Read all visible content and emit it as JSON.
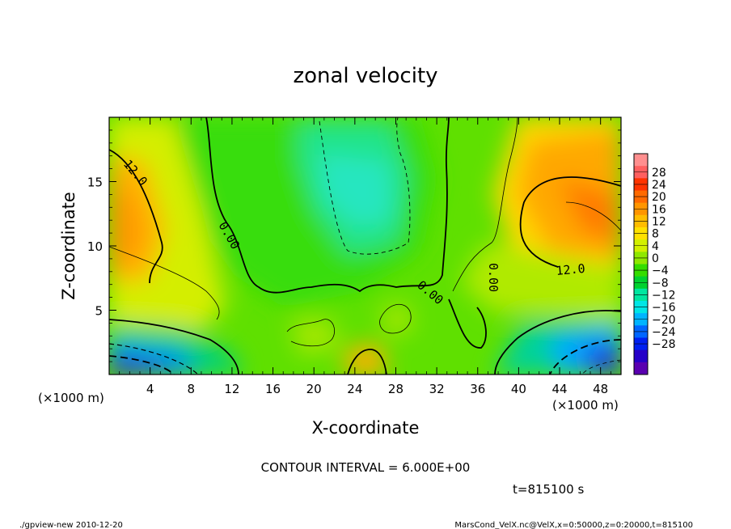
{
  "chart_data": {
    "type": "heatmap",
    "title": "zonal velocity",
    "xlabel": "X-coordinate",
    "ylabel": "Z-coordinate",
    "x_unit": "(×1000 m)",
    "y_unit": "(×1000 m)",
    "xlim": [
      0,
      50
    ],
    "ylim": [
      0,
      20
    ],
    "x_ticks": [
      4,
      8,
      12,
      16,
      20,
      24,
      28,
      32,
      36,
      40,
      44,
      48
    ],
    "y_ticks": [
      5,
      10,
      15
    ],
    "colorbar": {
      "labels": [
        28,
        24,
        20,
        16,
        12,
        8,
        4,
        0,
        -4,
        -8,
        -12,
        -16,
        -20,
        -24,
        -28
      ],
      "colors": [
        "#ff8f8f",
        "#ff6060",
        "#ff3300",
        "#ff6a00",
        "#ff9500",
        "#ffbd00",
        "#ffe100",
        "#d2f000",
        "#8fe800",
        "#35dd00",
        "#00d230",
        "#00e6a0",
        "#00e6e6",
        "#00b4ff",
        "#0066ff",
        "#0020f0",
        "#2600c8",
        "#5a00b0"
      ]
    },
    "contour_labels": [
      {
        "text": "12.0",
        "x": 2,
        "z": 16.5
      },
      {
        "text": "0.00",
        "x": 11.5,
        "z": 10.7
      },
      {
        "text": "0.00",
        "x": 31,
        "z": 6
      },
      {
        "text": "0.00",
        "x": 37.5,
        "z": 7.8
      },
      {
        "text": "12.0",
        "x": 45.5,
        "z": 8.3
      }
    ],
    "contour_interval_text": "CONTOUR INTERVAL = 6.000E+00",
    "time_text": "t=815100 s"
  },
  "footer": {
    "left": "./gpview-new  2010-12-20",
    "right": "MarsCond_VelX.nc@VelX,x=0:50000,z=0:20000,t=815100"
  }
}
